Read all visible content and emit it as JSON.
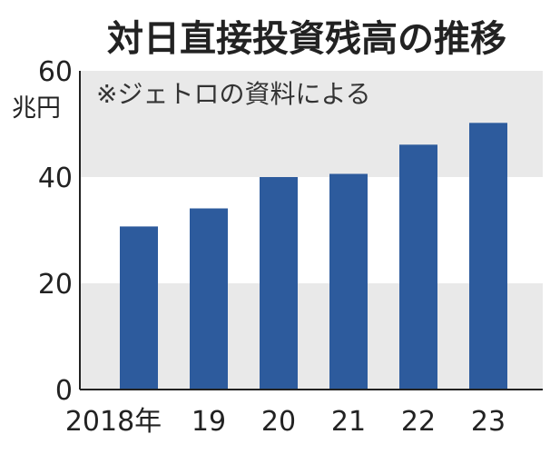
{
  "chart_data": {
    "type": "bar",
    "title": "対日直接投資残高の推移",
    "note": "※ジェトロの資料による",
    "unit": "兆円",
    "categories": [
      "2018年",
      "19",
      "20",
      "21",
      "22",
      "23"
    ],
    "values": [
      30.7,
      34.1,
      40.0,
      40.6,
      46.1,
      50.2
    ],
    "ylim": [
      0,
      60
    ],
    "yticks": [
      0,
      20,
      40,
      60
    ],
    "grid": "alternating-bands",
    "colors": {
      "bar": "#2d5b9d",
      "band": "#e9e9e9",
      "axis": "#222222"
    }
  }
}
